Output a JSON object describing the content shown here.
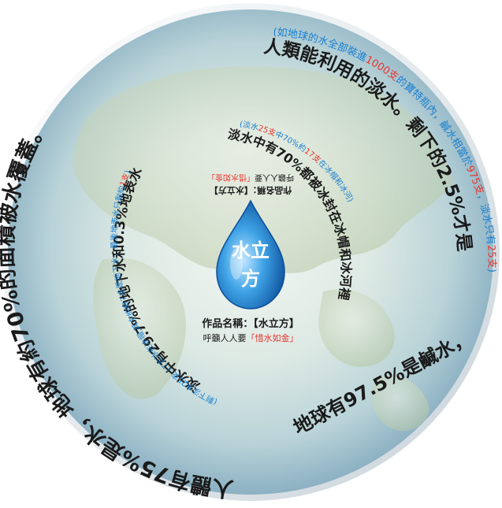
{
  "drop": {
    "line1": "水立",
    "line2": "方"
  },
  "caption": {
    "title_prefix": "作品名稱：",
    "title_work": "【水立方】",
    "slogan_prefix": "呼籲人人要",
    "slogan_quote": "「惜水如金」"
  },
  "rings": {
    "outer_left": "人體有75%是水，地球有約70%的面積被水覆蓋。",
    "outer_right_bottom": "地球有97.5%是鹹水，剩下的2.5%才是人類能利用的淡水。",
    "outer_blue": "(如地球的水全部裝進1000支的寶特瓶內，鹹水相當於975支，淡水只有25支)",
    "outer_blue_highlight1": "1000支",
    "outer_blue_highlight2": "975支",
    "outer_blue_highlight3": "25支",
    "mid_right": "淡水中有70%都被冰封在冰帽和冰河裡",
    "mid_right_blue": "(淡水25支中70%約17支在冰帽和冰河)",
    "mid_left": "淡水中有29.7%的地下水和0.3%地表水",
    "mid_left_blue": "(剩下淡水25支,17支冰在冰帽,其中約有7支是地下水，最後地表水只剩約1支)"
  },
  "colors": {
    "red": "#e8352e",
    "blue": "#1a7fd0",
    "text": "#1a1a1a"
  }
}
